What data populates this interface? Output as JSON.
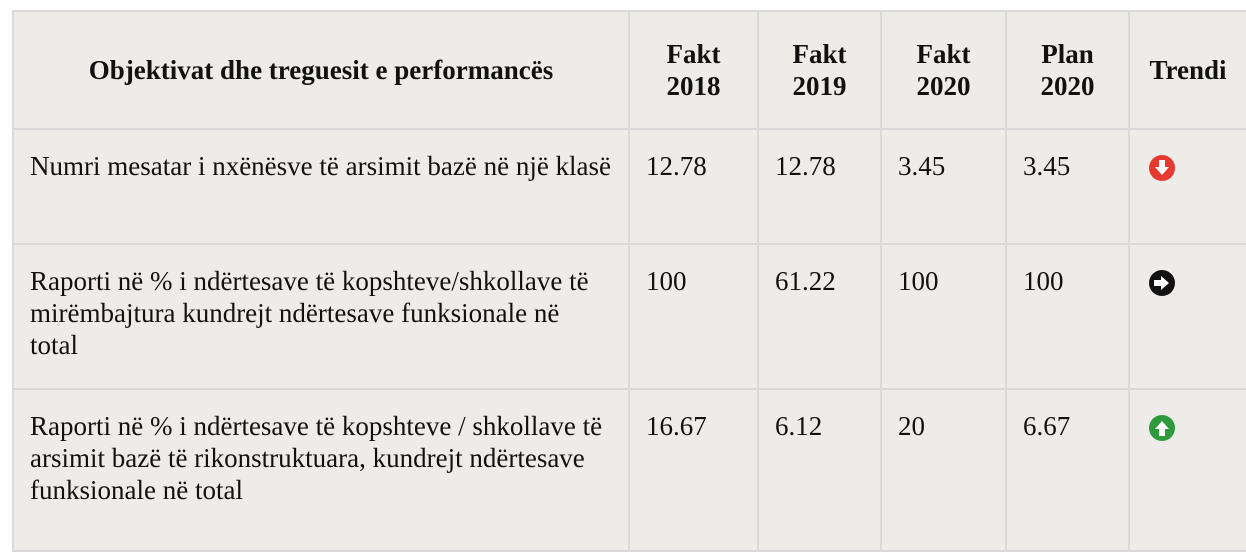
{
  "table": {
    "headers": [
      "Objektivat dhe treguesit e performancës",
      "Fakt 2018",
      "Fakt 2019",
      "Fakt 2020",
      "Plan 2020",
      "Trendi"
    ],
    "rows": [
      [
        "Numri mesatar i nxënësve të arsimit bazë në një klasë",
        "12.78",
        "12.78",
        "3.45",
        "3.45"
      ],
      [
        "Raporti në % i ndërtesave të kopshteve/shkollave të mirëmbajtura kundrejt ndërtesave funksionale në total",
        "100",
        "61.22",
        "100",
        "100"
      ],
      [
        "Raporti në % i ndërtesave të kopshteve / shkollave të arsimit bazë të rikonstruktuara, kundrejt ndërtesave funksionale në total",
        "16.67",
        "6.12",
        "20",
        "6.67"
      ]
    ]
  }
}
